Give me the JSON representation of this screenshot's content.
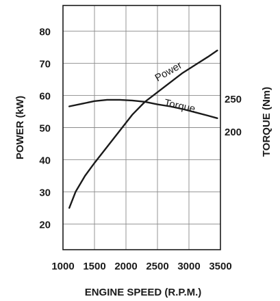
{
  "chart_data": {
    "type": "line",
    "xlabel": "ENGINE SPEED (R.P.M.)",
    "ylabel": "POWER (kW)",
    "y2label": "TORQUE (Nm)",
    "xlim": [
      1000,
      3500
    ],
    "ylim": [
      12,
      88
    ],
    "x_ticks": [
      "1000",
      "1500",
      "2000",
      "2500",
      "3000",
      "3500"
    ],
    "y_ticks": [
      "20",
      "30",
      "40",
      "50",
      "60",
      "70",
      "80"
    ],
    "y2_ticks": [
      "200",
      "250"
    ],
    "grid": true,
    "series": [
      {
        "name": "Power",
        "axis": "left",
        "x": [
          1100,
          1200,
          1350,
          1500,
          1700,
          1900,
          2100,
          2300,
          2500,
          2700,
          2900,
          3100,
          3300,
          3450
        ],
        "y": [
          25,
          30,
          35,
          39,
          44,
          49,
          54,
          58,
          61,
          64,
          67,
          69.5,
          72,
          74
        ]
      },
      {
        "name": "Torque",
        "axis": "right",
        "x": [
          1100,
          1300,
          1500,
          1700,
          1900,
          2100,
          2300,
          2500,
          2700,
          2900,
          3100,
          3300,
          3450
        ],
        "y": [
          238,
          242,
          246,
          248,
          248,
          247,
          245,
          241,
          238,
          234,
          229,
          224,
          220
        ]
      }
    ]
  }
}
